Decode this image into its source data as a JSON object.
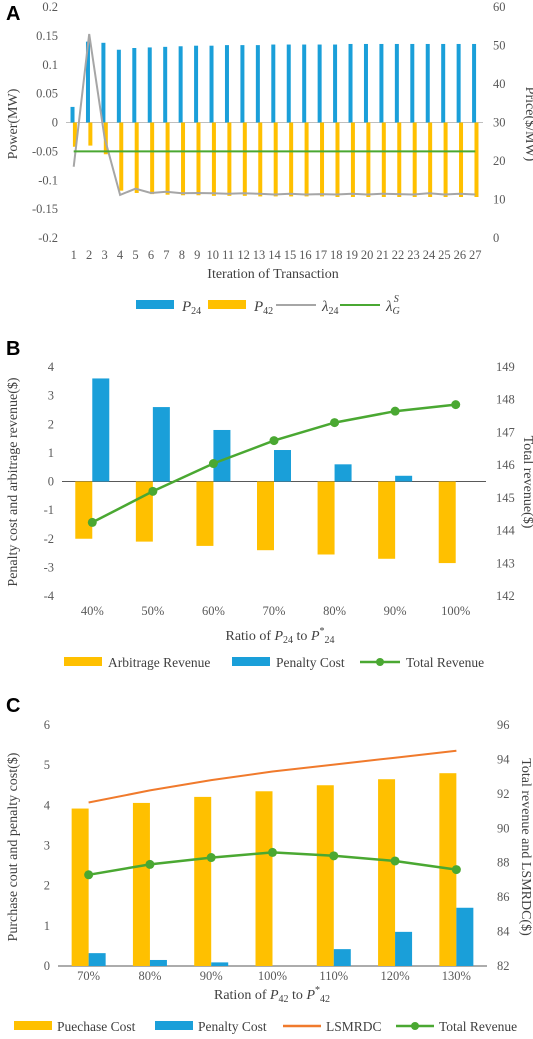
{
  "colors": {
    "blue": "#1a9fd9",
    "yellow": "#ffc000",
    "gray": "#a6a6a6",
    "green": "#4aa832",
    "orange": "#f07a2c",
    "axis": "#595959",
    "zero": "#bfbfbf"
  },
  "chart_data": [
    {
      "id": "A",
      "panel_label": "A",
      "type": "bar",
      "xlabel": "Iteration of Transaction",
      "ylabel": "Power(MW)",
      "ylabel_right": "Price($/MW)",
      "ylim": [
        -0.2,
        0.2
      ],
      "ylim_right": [
        0,
        60
      ],
      "ytick_labels": [
        "-0.2",
        "-0.15",
        "-0.1",
        "-0.05",
        "0",
        "0.05",
        "0.1",
        "0.15",
        "0.2"
      ],
      "ytick_labels_right": [
        "0",
        "10",
        "20",
        "30",
        "40",
        "50",
        "60"
      ],
      "categories": [
        "1",
        "2",
        "3",
        "4",
        "5",
        "6",
        "7",
        "8",
        "9",
        "10",
        "11",
        "12",
        "13",
        "14",
        "15",
        "16",
        "17",
        "18",
        "19",
        "20",
        "21",
        "22",
        "23",
        "24",
        "25",
        "26",
        "27"
      ],
      "series": [
        {
          "name": "P24",
          "type": "bar",
          "axis": "left",
          "color": "#1a9fd9",
          "values": [
            0.027,
            0.14,
            0.138,
            0.126,
            0.129,
            0.13,
            0.131,
            0.132,
            0.133,
            0.133,
            0.134,
            0.134,
            0.134,
            0.135,
            0.135,
            0.135,
            0.135,
            0.135,
            0.136,
            0.136,
            0.136,
            0.136,
            0.136,
            0.136,
            0.136,
            0.136,
            0.136
          ]
        },
        {
          "name": "P42",
          "type": "bar",
          "axis": "left",
          "color": "#ffc000",
          "values": [
            -0.042,
            -0.04,
            -0.055,
            -0.118,
            -0.122,
            -0.124,
            -0.125,
            -0.126,
            -0.126,
            -0.127,
            -0.127,
            -0.127,
            -0.128,
            -0.128,
            -0.128,
            -0.128,
            -0.128,
            -0.129,
            -0.129,
            -0.129,
            -0.129,
            -0.129,
            -0.129,
            -0.129,
            -0.129,
            -0.129,
            -0.129
          ]
        },
        {
          "name": "λ24",
          "type": "line",
          "axis": "right",
          "color": "#a6a6a6",
          "values": [
            18.5,
            53.0,
            26.0,
            11.2,
            12.8,
            11.7,
            12.0,
            11.6,
            11.7,
            11.6,
            11.5,
            11.6,
            11.5,
            11.3,
            11.5,
            11.3,
            11.4,
            11.3,
            11.5,
            11.3,
            11.5,
            11.4,
            11.3,
            11.6,
            11.3,
            11.5,
            11.3
          ]
        },
        {
          "name": "λG",
          "type": "line",
          "axis": "right",
          "color": "#4aa832",
          "values": [
            22.5,
            22.5,
            22.5,
            22.5,
            22.5,
            22.5,
            22.5,
            22.5,
            22.5,
            22.5,
            22.5,
            22.5,
            22.5,
            22.5,
            22.5,
            22.5,
            22.5,
            22.5,
            22.5,
            22.5,
            22.5,
            22.5,
            22.5,
            22.5,
            22.5,
            22.5,
            22.5
          ]
        }
      ],
      "legend": [
        {
          "kind": "bar",
          "color": "#1a9fd9",
          "main": "P",
          "sub": "24",
          "sup": ""
        },
        {
          "kind": "bar",
          "color": "#ffc000",
          "main": "P",
          "sub": "42",
          "sup": ""
        },
        {
          "kind": "line",
          "color": "#a6a6a6",
          "main": "λ",
          "sub": "24",
          "sup": ""
        },
        {
          "kind": "line",
          "color": "#4aa832",
          "main": "λ",
          "sub": "G",
          "sup": "S"
        }
      ]
    },
    {
      "id": "B",
      "panel_label": "B",
      "type": "bar",
      "xlabel_parts": {
        "prefix": "Ratio of ",
        "p1": "P",
        "p1_sub": "24",
        "mid": " to ",
        "p2": "P",
        "p2_sup": "*",
        "p2_sub": "24"
      },
      "ylabel": "Penalty cost and arbitrage revenue($)",
      "ylabel_right": "Total revenue($)",
      "ylim": [
        -4,
        4
      ],
      "ylim_right": [
        142,
        149
      ],
      "ytick_labels": [
        "-4",
        "-3",
        "-2",
        "-1",
        "0",
        "1",
        "2",
        "3",
        "4"
      ],
      "ytick_labels_right": [
        "142",
        "143",
        "144",
        "145",
        "146",
        "147",
        "148",
        "149"
      ],
      "categories": [
        "40%",
        "50%",
        "60%",
        "70%",
        "80%",
        "90%",
        "100%"
      ],
      "series": [
        {
          "name": "Arbitrage Revenue",
          "type": "bar",
          "axis": "left",
          "color": "#ffc000",
          "values": [
            -2.0,
            -2.1,
            -2.25,
            -2.4,
            -2.55,
            -2.7,
            -2.85
          ]
        },
        {
          "name": "Penalty Cost",
          "type": "bar",
          "axis": "left",
          "color": "#1a9fd9",
          "values": [
            3.6,
            2.6,
            1.8,
            1.1,
            0.6,
            0.2,
            0
          ]
        },
        {
          "name": "Total Revenue",
          "type": "line-marker",
          "axis": "right",
          "color": "#4aa832",
          "values": [
            144.25,
            145.2,
            146.05,
            146.75,
            147.3,
            147.65,
            147.85
          ]
        }
      ],
      "legend": [
        {
          "kind": "bar",
          "color": "#ffc000",
          "text": "Arbitrage Revenue"
        },
        {
          "kind": "bar",
          "color": "#1a9fd9",
          "text": "Penalty Cost"
        },
        {
          "kind": "marker",
          "color": "#4aa832",
          "text": "Total Revenue"
        }
      ]
    },
    {
      "id": "C",
      "panel_label": "C",
      "type": "bar",
      "xlabel_parts": {
        "prefix": "Ration of ",
        "p1": "P",
        "p1_sub": "42",
        "mid": " to ",
        "p2": "P",
        "p2_sup": "*",
        "p2_sub": "42"
      },
      "ylabel": "Purchase cout and penalty cost($)",
      "ylabel_right": "Total revenue and LSMRDC($)",
      "ylim": [
        0,
        6
      ],
      "ylim_right": [
        82,
        96
      ],
      "ytick_labels": [
        "0",
        "1",
        "2",
        "3",
        "4",
        "5",
        "6"
      ],
      "ytick_labels_right": [
        "82",
        "84",
        "86",
        "88",
        "90",
        "92",
        "94",
        "96"
      ],
      "categories": [
        "70%",
        "80%",
        "90%",
        "100%",
        "110%",
        "120%",
        "130%"
      ],
      "series": [
        {
          "name": "Puechase Cost",
          "type": "bar",
          "axis": "left",
          "color": "#ffc000",
          "values": [
            3.92,
            4.06,
            4.21,
            4.35,
            4.5,
            4.65,
            4.8
          ]
        },
        {
          "name": "Penalty Cost",
          "type": "bar",
          "axis": "left",
          "color": "#1a9fd9",
          "values": [
            0.32,
            0.15,
            0.09,
            0,
            0.42,
            0.85,
            1.45
          ]
        },
        {
          "name": "LSMRDC",
          "type": "line",
          "axis": "right",
          "color": "#f07a2c",
          "values": [
            91.5,
            92.2,
            92.8,
            93.3,
            93.7,
            94.1,
            94.5
          ]
        },
        {
          "name": "Total Revenue",
          "type": "line-marker",
          "axis": "right",
          "color": "#4aa832",
          "values": [
            87.3,
            87.9,
            88.3,
            88.6,
            88.4,
            88.1,
            87.6
          ]
        }
      ],
      "legend": [
        {
          "kind": "bar",
          "color": "#ffc000",
          "text": "Puechase Cost"
        },
        {
          "kind": "bar",
          "color": "#1a9fd9",
          "text": "Penalty Cost"
        },
        {
          "kind": "line",
          "color": "#f07a2c",
          "text": "LSMRDC"
        },
        {
          "kind": "marker",
          "color": "#4aa832",
          "text": "Total Revenue"
        }
      ]
    }
  ]
}
